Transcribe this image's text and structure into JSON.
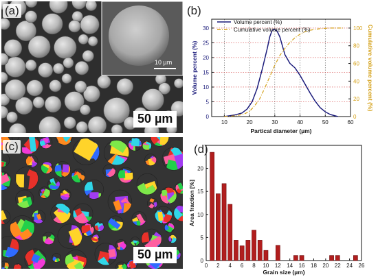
{
  "panel_a": {
    "label": "(a)",
    "scale_main": "50 µm",
    "scale_inset": "10 µm"
  },
  "panel_b": {
    "label": "(b)"
  },
  "panel_c": {
    "label": "(c)",
    "scale_main": "50 µm"
  },
  "panel_d": {
    "label": "(d)"
  },
  "colors": {
    "volume_line": "#1a1a7a",
    "cumulative_line": "#d4a017",
    "bars": "#b11e1e",
    "bar_edge": "#6a0a0a",
    "grid": "#555555"
  },
  "chart_data": [
    {
      "type": "line",
      "panel": "b",
      "xlabel": "Partical diameter (µm)",
      "ylabel": "Volume percent (%)",
      "y2label": "Cumulative volume percent (%)",
      "xlim": [
        5,
        60
      ],
      "ylim": [
        0,
        33
      ],
      "y2lim": [
        0,
        110
      ],
      "xticks": [
        10,
        20,
        30,
        40,
        50,
        60
      ],
      "yticks": [
        0,
        5,
        10,
        15,
        20,
        25,
        30
      ],
      "y2ticks": [
        0,
        20,
        40,
        60,
        80,
        100
      ],
      "grid": true,
      "legend": "top-left",
      "series": [
        {
          "name": "Volume percent (%)",
          "axis": "left",
          "style": "solid",
          "x": [
            10,
            14,
            17,
            19,
            21,
            23,
            25,
            27,
            28,
            29,
            30,
            31,
            32,
            34,
            36,
            38,
            40,
            42,
            44,
            46,
            48,
            50,
            52,
            55
          ],
          "y": [
            0,
            0.5,
            1.2,
            2.5,
            5,
            9.5,
            16,
            23,
            27,
            29.3,
            29.5,
            28.8,
            27,
            21,
            18,
            16.5,
            14,
            11,
            8,
            5.2,
            3,
            1.6,
            0.7,
            0
          ]
        },
        {
          "name": "Cumulative volume percent (%)",
          "axis": "right",
          "style": "dashdot",
          "x": [
            10,
            15,
            18,
            20,
            22,
            24,
            26,
            28,
            30,
            32,
            34,
            36,
            38,
            40,
            42,
            44,
            46,
            48,
            50,
            52,
            55,
            57
          ],
          "y": [
            0,
            1,
            3,
            6,
            12,
            20,
            32,
            45,
            58,
            69,
            77,
            84,
            89,
            93,
            96,
            97.5,
            98.5,
            99.3,
            99.7,
            100,
            100,
            100
          ]
        }
      ]
    },
    {
      "type": "bar",
      "panel": "d",
      "xlabel": "Grain size (µm)",
      "ylabel": "Area fraction [%]",
      "xlim": [
        0,
        26
      ],
      "ylim": [
        0,
        25
      ],
      "xticks": [
        0,
        2,
        4,
        6,
        8,
        10,
        12,
        14,
        16,
        18,
        20,
        22,
        24,
        26
      ],
      "yticks": [
        0,
        5,
        10,
        15,
        20
      ],
      "bar_width": 0.7,
      "x": [
        1,
        2,
        3,
        4,
        5,
        6,
        7,
        8,
        9,
        10,
        12,
        15,
        16,
        21,
        22,
        25
      ],
      "values": [
        23.5,
        14.5,
        16.7,
        12.2,
        4.4,
        3.2,
        4.4,
        6.6,
        4.4,
        2.2,
        3.3,
        1.1,
        1.1,
        1.1,
        1.1,
        1.1
      ]
    }
  ]
}
